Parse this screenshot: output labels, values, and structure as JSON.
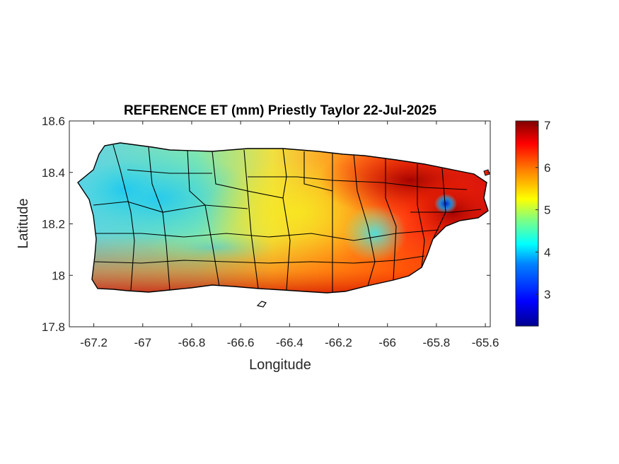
{
  "title": "REFERENCE ET (mm) Priestly Taylor 22-Jul-2025",
  "xlabel": "Longitude",
  "ylabel": "Latitude",
  "chart_data": {
    "type": "heatmap",
    "title": "REFERENCE ET (mm) Priestly Taylor 22-Jul-2025",
    "xlabel": "Longitude",
    "ylabel": "Latitude",
    "xlim": [
      -67.3,
      -65.58
    ],
    "ylim": [
      17.8,
      18.6
    ],
    "xticks": [
      -67.2,
      -67,
      -66.8,
      -66.6,
      -66.4,
      -66.2,
      -66,
      -65.8,
      -65.6
    ],
    "xtick_labels": [
      "-67.2",
      "-67",
      "-66.8",
      "-66.6",
      "-66.4",
      "-66.2",
      "-66",
      "-65.8",
      "-65.6"
    ],
    "yticks": [
      18.6,
      18.4,
      18.2,
      18,
      17.8
    ],
    "ytick_labels": [
      "18.6",
      "18.4",
      "18.2",
      "18",
      "17.8"
    ],
    "colorbar": {
      "colormap": "jet",
      "range": [
        2.25,
        7.1
      ],
      "ticks": [
        7,
        6,
        5,
        4,
        3
      ],
      "tick_labels": [
        "7",
        "6",
        "5",
        "4",
        "3"
      ]
    },
    "region": "Puerto Rico",
    "approx_values": [
      {
        "area": "west interior",
        "value_range": [
          4.0,
          4.6
        ]
      },
      {
        "area": "central interior",
        "value_range": [
          5.2,
          6.0
        ]
      },
      {
        "area": "south coast",
        "value_range": [
          6.3,
          7.0
        ]
      },
      {
        "area": "northeast",
        "value_range": [
          6.5,
          7.0
        ]
      },
      {
        "area": "east interior low",
        "value_range": [
          2.8,
          3.5
        ]
      }
    ]
  },
  "colors": {
    "jet": [
      "#00008f",
      "#0000ff",
      "#0080ff",
      "#00ffff",
      "#80ff80",
      "#ffff00",
      "#ff8000",
      "#ff0000",
      "#800000"
    ],
    "axis": "#262626",
    "boundary": "#000000"
  }
}
